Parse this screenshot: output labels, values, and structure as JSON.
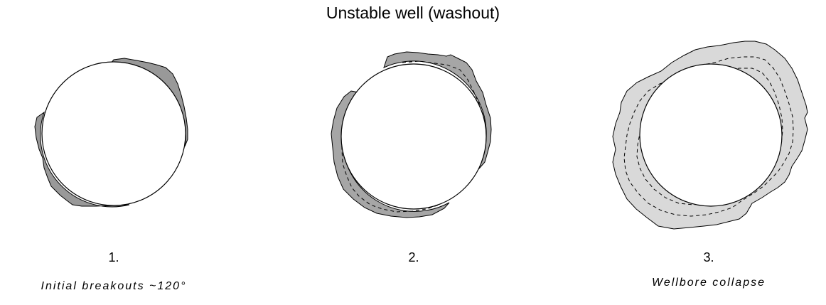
{
  "title": "Unstable well (washout)",
  "stages": [
    {
      "number": "1.",
      "caption": "Initial breakouts ~120°"
    },
    {
      "number": "2.",
      "caption": ""
    },
    {
      "number": "3.",
      "caption": "Wellbore collapse"
    }
  ],
  "colors": {
    "breakout_fill_dark": "#999999",
    "breakout_fill_medium": "#a6a6a6",
    "collapse_fill_light": "#d9d9d9",
    "outline": "#000000",
    "borehole": "#ffffff"
  }
}
